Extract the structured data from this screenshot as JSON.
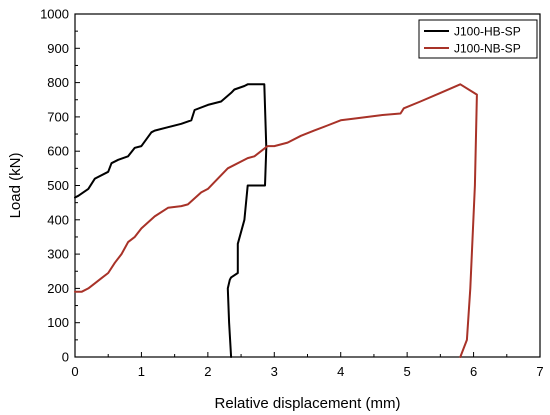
{
  "chart_data": {
    "type": "line",
    "xlabel": "Relative displacement (mm)",
    "ylabel": "Load (kN)",
    "xlim": [
      0,
      7
    ],
    "ylim": [
      0,
      1000
    ],
    "x_ticks": [
      "0",
      "1",
      "2",
      "3",
      "4",
      "5",
      "6",
      "7"
    ],
    "y_ticks": [
      "0",
      "100",
      "200",
      "300",
      "400",
      "500",
      "600",
      "700",
      "800",
      "900",
      "1000"
    ],
    "grid": false,
    "legend_position": "top-right",
    "series": [
      {
        "name": "J100-HB-SP",
        "color": "#000000",
        "x": [
          0.0,
          0.05,
          0.2,
          0.3,
          0.5,
          0.55,
          0.65,
          0.8,
          0.9,
          1.0,
          1.15,
          1.2,
          1.4,
          1.6,
          1.75,
          1.8,
          2.0,
          2.2,
          2.35,
          2.4,
          2.55,
          2.6,
          2.85,
          2.88,
          2.86,
          2.6,
          2.55,
          2.45,
          2.45,
          2.35,
          2.33,
          2.3,
          2.32,
          2.35
        ],
        "y": [
          465,
          470,
          490,
          520,
          540,
          565,
          575,
          585,
          610,
          615,
          655,
          660,
          670,
          680,
          690,
          720,
          735,
          745,
          770,
          780,
          790,
          795,
          795,
          610,
          500,
          500,
          400,
          330,
          245,
          232,
          225,
          200,
          100,
          0
        ]
      },
      {
        "name": "J100-NB-SP",
        "color": "#a83228",
        "x": [
          0.0,
          0.1,
          0.2,
          0.3,
          0.4,
          0.5,
          0.6,
          0.7,
          0.8,
          0.9,
          1.0,
          1.2,
          1.4,
          1.6,
          1.7,
          1.9,
          2.0,
          2.1,
          2.3,
          2.6,
          2.7,
          2.8,
          2.9,
          3.0,
          3.2,
          3.4,
          3.6,
          3.8,
          4.0,
          4.2,
          4.6,
          4.9,
          4.95,
          5.2,
          5.5,
          5.8,
          6.05,
          6.02,
          5.95,
          5.9,
          5.8
        ],
        "y": [
          190,
          190,
          200,
          215,
          230,
          245,
          275,
          300,
          335,
          350,
          375,
          410,
          435,
          440,
          445,
          480,
          490,
          510,
          550,
          580,
          585,
          600,
          615,
          615,
          625,
          645,
          660,
          675,
          690,
          695,
          705,
          710,
          725,
          745,
          770,
          795,
          765,
          500,
          200,
          50,
          0
        ]
      }
    ]
  }
}
